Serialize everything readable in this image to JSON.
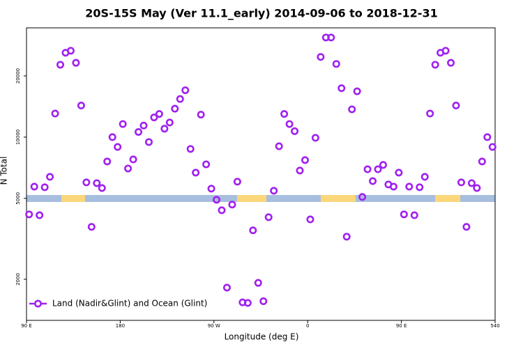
{
  "chart_data": {
    "type": "scatter",
    "title": "20S-15S May (Ver 11.1_early)   2014-09-06 to 2018-12-31",
    "x_label": "Longitude (deg E)",
    "y_label": "N Total",
    "xlim": [
      90,
      540
    ],
    "ylim": [
      1256,
      34460
    ],
    "log_y": true,
    "xticks": [
      {
        "value": 90,
        "label": "90 E"
      },
      180,
      {
        "value": 270,
        "label": "90 W"
      },
      {
        "value": 360,
        "label": "0"
      },
      {
        "value": 450,
        "label": "90 E"
      },
      540
    ],
    "yticks": [
      2000,
      5000,
      10000,
      20000
    ],
    "legend": "bottom-left",
    "x": [
      92.5,
      97.5,
      102.5,
      107.5,
      112.5,
      117.5,
      122.5,
      127.5,
      132.5,
      137.5,
      142.5,
      147.5,
      152.5,
      157.5,
      162.5,
      167.5,
      172.5,
      177.5,
      182.5,
      187.5,
      192.5,
      197.5,
      202.5,
      207.5,
      212.5,
      217.5,
      222.5,
      227.5,
      232.5,
      237.5,
      242.5,
      247.5,
      252.5,
      257.5,
      262.5,
      267.5,
      272.5,
      277.5,
      282.5,
      287.5,
      292.5,
      297.5,
      302.5,
      307.5,
      312.5,
      317.5,
      322.5,
      327.5,
      332.5,
      337.5,
      342.5,
      347.5,
      352.5,
      357.5,
      362.5,
      367.5,
      372.5,
      377.5,
      382.5,
      387.5,
      392.5,
      397.5,
      402.5,
      407.5,
      412.5,
      417.5,
      422.5,
      427.5,
      432.5,
      437.5,
      442.5,
      447.5,
      452.5,
      457.5,
      462.5,
      467.5,
      472.5,
      477.5,
      482.5,
      487.5,
      492.5,
      497.5,
      502.5,
      507.5,
      512.5,
      517.5,
      522.5,
      527.5,
      532.5,
      537.5
    ],
    "series": [
      {
        "name": "Land (Nadir&Glint) and Ocean (Glint)",
        "color": "#a020f0",
        "values": [
          4170,
          5710,
          4130,
          5670,
          6380,
          13060,
          22700,
          26000,
          26600,
          23200,
          14300,
          5990,
          3620,
          5940,
          5620,
          7590,
          10000,
          8950,
          11600,
          7010,
          7770,
          10600,
          11400,
          9460,
          12500,
          13000,
          11000,
          11800,
          13800,
          15400,
          17000,
          8750,
          6690,
          12900,
          7350,
          5580,
          4920,
          4370,
          1820,
          4660,
          6040,
          1540,
          1530,
          3480,
          1920,
          1560,
          4040,
          5450,
          9020,
          13000,
          11600,
          10700,
          6850,
          7710,
          3940,
          9920,
          24800,
          30900,
          30900,
          22900,
          17400,
          3240,
          13700,
          16800,
          5080,
          6950,
          6080,
          6950,
          7300,
          5850,
          5710,
          6690,
          4170,
          5710,
          4130,
          5670,
          6380,
          13060,
          22700,
          26000,
          26600,
          23200,
          14300,
          5990,
          3620,
          5940,
          5620,
          7590,
          10000,
          8950
        ]
      }
    ]
  }
}
